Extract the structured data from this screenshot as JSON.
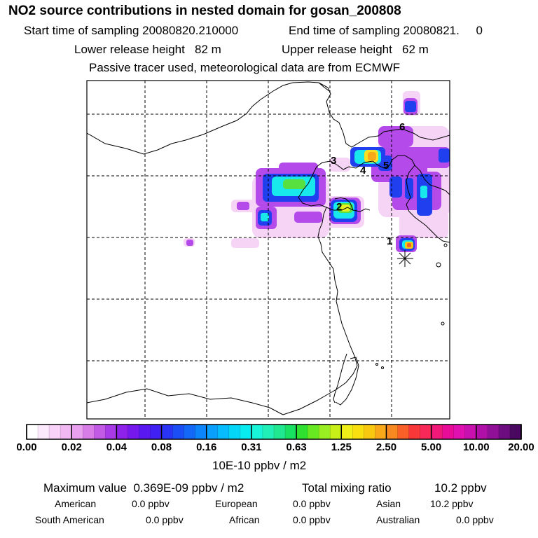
{
  "header": {
    "title": "NO2 source contributions in nested domain for gosan_200808",
    "start_label": "Start time of sampling 20080820.210000",
    "end_label": "End time of sampling 20080821.     0",
    "lower_label": "Lower release height   82 m",
    "upper_label": "Upper release height   62 m",
    "tracer_note": "Passive tracer used, meteorological data are from ECMWF"
  },
  "map": {
    "source_labels": [
      "1",
      "2",
      "3",
      "4",
      "5",
      "6"
    ],
    "receptor": "gosan"
  },
  "colorbar": {
    "unit": "10E-10 ppbv / m2",
    "ticks": [
      "0.00",
      "0.02",
      "0.04",
      "0.08",
      "0.16",
      "0.31",
      "0.63",
      "1.25",
      "2.50",
      "5.00",
      "10.00",
      "20.00"
    ],
    "colors": [
      "#ffffff",
      "#fde9fd",
      "#f8d2f8",
      "#f2b8f2",
      "#e9a0ee",
      "#d87ce8",
      "#c25ae6",
      "#a83ae8",
      "#8e22ea",
      "#7418ee",
      "#5a18f0",
      "#4020f2",
      "#2a34f4",
      "#1c4ef6",
      "#1468f8",
      "#0c84fa",
      "#08a0fc",
      "#06bcfc",
      "#04d6f8",
      "#08ecf0",
      "#18f4d8",
      "#20f0b8",
      "#20e890",
      "#18e060",
      "#30e030",
      "#68e820",
      "#98ee20",
      "#c8f018",
      "#f0f018",
      "#f8e010",
      "#f8c810",
      "#f8a818",
      "#f88820",
      "#f86028",
      "#f83838",
      "#f82858",
      "#f01878",
      "#e80c98",
      "#e010b0",
      "#c810b0",
      "#b010a8",
      "#901098",
      "#6c0c80",
      "#4a0860"
    ]
  },
  "stats": {
    "max_label": "Maximum value  0.369E-09 ppbv / m2",
    "total_label": "Total mixing ratio",
    "total_value": "10.2 ppbv",
    "american_label": "American",
    "american_value": "0.0 ppbv",
    "european_label": "European",
    "european_value": "0.0 ppbv",
    "asian_label": "Asian",
    "asian_value": "10.2 ppbv",
    "south_american_label": "South American",
    "south_american_value": "0.0 ppbv",
    "african_label": "African",
    "african_value": "0.0 ppbv",
    "australian_label": "Australian",
    "australian_value": "0.0 ppbv"
  }
}
